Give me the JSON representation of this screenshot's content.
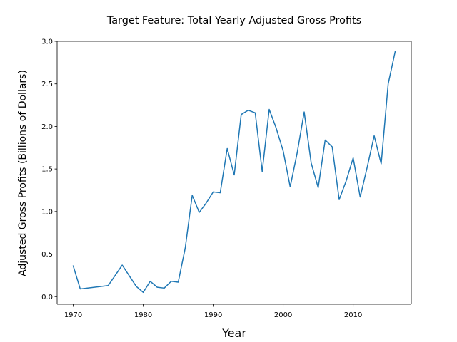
{
  "chart_data": {
    "type": "line",
    "title": "Target Feature: Total Yearly Adjusted Gross Profits",
    "xlabel": "Year",
    "ylabel": "Adjusted Gross Profits (Billions of Dollars)",
    "xlim": [
      1967.7,
      2018.3
    ],
    "ylim": [
      -0.09,
      3.0
    ],
    "xticks": [
      1970,
      1980,
      1990,
      2000,
      2010
    ],
    "xtick_labels": [
      "1970",
      "1980",
      "1990",
      "2000",
      "2010"
    ],
    "yticks": [
      0.0,
      0.5,
      1.0,
      1.5,
      2.0,
      2.5,
      3.0
    ],
    "ytick_labels": [
      "0.0",
      "0.5",
      "1.0",
      "1.5",
      "2.0",
      "2.5",
      "3.0"
    ],
    "grid": false,
    "series": [
      {
        "color": "#1f77b4",
        "x": [
          1970,
          1971,
          1975,
          1977,
          1979,
          1980,
          1981,
          1982,
          1983,
          1984,
          1985,
          1986,
          1987,
          1988,
          1989,
          1990,
          1991,
          1992,
          1993,
          1994,
          1995,
          1996,
          1997,
          1998,
          1999,
          2000,
          2001,
          2002,
          2003,
          2004,
          2005,
          2006,
          2007,
          2008,
          2009,
          2010,
          2011,
          2012,
          2013,
          2014,
          2015,
          2016
        ],
        "y": [
          0.36,
          0.09,
          0.13,
          0.37,
          0.12,
          0.05,
          0.18,
          0.11,
          0.1,
          0.18,
          0.17,
          0.57,
          1.19,
          0.99,
          1.1,
          1.23,
          1.22,
          1.74,
          1.43,
          2.14,
          2.19,
          2.16,
          1.47,
          2.2,
          1.98,
          1.71,
          1.29,
          1.69,
          2.17,
          1.57,
          1.28,
          1.84,
          1.76,
          1.14,
          1.36,
          1.63,
          1.17,
          1.52,
          1.89,
          1.56,
          2.5,
          2.88
        ]
      }
    ]
  }
}
